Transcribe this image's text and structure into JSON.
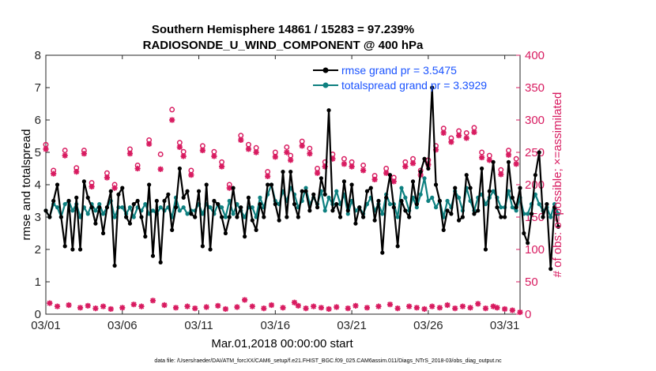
{
  "chart_data": {
    "type": "line",
    "title": "Southern Hemisphere 14861 / 15283 = 97.239%",
    "subtitle": "RADIOSONDE_U_WIND_COMPONENT @ 400 hPa",
    "xlabel": "Mar.01,2018 00:00:00 start",
    "ylabel": "rmse and totalspread",
    "ylabel_right": "# of obs: o=possible; ×=assimilated",
    "xlim": [
      0,
      124
    ],
    "ylim": [
      0,
      8
    ],
    "ylim_right": [
      0,
      400
    ],
    "x_ticks": [
      {
        "x": 0,
        "label": "03/01"
      },
      {
        "x": 20,
        "label": "03/06"
      },
      {
        "x": 40,
        "label": "03/11"
      },
      {
        "x": 60,
        "label": "03/16"
      },
      {
        "x": 80,
        "label": "03/21"
      },
      {
        "x": 100,
        "label": "03/26"
      },
      {
        "x": 120,
        "label": "03/31"
      }
    ],
    "y_ticks": [
      "0",
      "1",
      "2",
      "3",
      "4",
      "5",
      "6",
      "7",
      "8"
    ],
    "y_ticks_right": [
      "0",
      "50",
      "100",
      "150",
      "200",
      "250",
      "300",
      "350",
      "400"
    ],
    "colors": {
      "rmse": "#000000",
      "spread": "#0e8080",
      "obs": "#d81b60",
      "legend_text": "#1a53ff"
    },
    "series": [
      {
        "name": "rmse",
        "legend": "rmse grand pr = 3.5475",
        "values": [
          3.2,
          3.0,
          3.5,
          4.0,
          3.0,
          2.1,
          3.5,
          2.0,
          3.6,
          2.0,
          4.1,
          3.6,
          3.3,
          2.8,
          3.3,
          2.5,
          3.3,
          3.8,
          1.5,
          3.7,
          3.9,
          3.0,
          2.8,
          3.4,
          3.5,
          3.0,
          2.4,
          4.0,
          1.8,
          3.5,
          1.6,
          3.5,
          3.7,
          2.6,
          3.3,
          4.5,
          3.6,
          3.8,
          3.1,
          3.0,
          3.8,
          2.1,
          4.0,
          2.0,
          3.5,
          3.4,
          3.0,
          2.5,
          3.0,
          3.9,
          3.0,
          3.3,
          2.4,
          3.6,
          2.9,
          2.6,
          3.4,
          3.0,
          4.0,
          4.0,
          3.4,
          2.9,
          4.4,
          3.0,
          4.4,
          3.4,
          3.0,
          3.8,
          3.8,
          3.2,
          3.7,
          3.3,
          4.2,
          3.7,
          6.3,
          3.2,
          3.4,
          3.0,
          4.1,
          3.2,
          4.0,
          2.8,
          3.3,
          3.0,
          3.8,
          3.9,
          2.9,
          3.5,
          1.9,
          3.6,
          4.3,
          3.3,
          2.1,
          3.5,
          3.2,
          3.0,
          4.1,
          3.4,
          4.4,
          4.8,
          4.5,
          7.0,
          4.0,
          3.5,
          2.6,
          3.2,
          3.1,
          3.9,
          2.9,
          3.0,
          4.3,
          3.9,
          3.1,
          3.2,
          4.5,
          2.0,
          3.8,
          4.7,
          3.3,
          3.0,
          3.0,
          4.7,
          3.6,
          3.3,
          3.9,
          2.5,
          2.2,
          3.1,
          4.3,
          5.0,
          3.0,
          3.4,
          1.4,
          3.3,
          2.7
        ]
      },
      {
        "name": "totalspread",
        "legend": "totalspread grand pr = 3.3929",
        "values": [
          3.2,
          3.0,
          3.4,
          3.3,
          3.0,
          3.4,
          3.5,
          3.2,
          3.4,
          3.0,
          3.3,
          3.1,
          3.4,
          3.2,
          3.4,
          3.1,
          3.3,
          3.5,
          3.0,
          3.3,
          3.3,
          3.1,
          3.3,
          3.0,
          3.3,
          3.2,
          3.4,
          3.1,
          3.2,
          3.1,
          3.3,
          3.2,
          3.3,
          3.0,
          3.6,
          3.2,
          3.3,
          3.1,
          3.2,
          3.2,
          3.4,
          3.1,
          3.4,
          3.3,
          3.1,
          3.4,
          3.3,
          3.0,
          3.5,
          3.1,
          3.4,
          3.2,
          3.0,
          3.3,
          3.3,
          3.0,
          3.6,
          3.3,
          3.7,
          4.0,
          3.5,
          3.4,
          3.8,
          3.5,
          3.9,
          3.7,
          3.3,
          3.5,
          3.9,
          3.4,
          3.6,
          3.4,
          3.8,
          3.2,
          3.6,
          3.4,
          3.8,
          3.4,
          3.7,
          3.1,
          3.5,
          3.2,
          3.3,
          3.1,
          3.4,
          3.6,
          3.2,
          3.4,
          3.1,
          3.7,
          3.4,
          3.4,
          3.0,
          3.9,
          3.6,
          3.2,
          3.6,
          3.3,
          3.7,
          4.2,
          3.5,
          3.6,
          3.3,
          3.5,
          3.0,
          3.5,
          3.3,
          3.8,
          3.6,
          3.2,
          3.9,
          3.5,
          3.2,
          3.6,
          3.7,
          3.4,
          3.6,
          3.8,
          3.6,
          3.3,
          3.3,
          3.8,
          3.3,
          3.2,
          3.6,
          3.1,
          3.1,
          3.4,
          3.7,
          3.4,
          3.2,
          3.3,
          3.0,
          3.4,
          3.1
        ]
      }
    ],
    "obs_possible": [
      {
        "x": 0,
        "v": 262
      },
      {
        "x": 2,
        "v": 222
      },
      {
        "x": 5,
        "v": 253
      },
      {
        "x": 8,
        "v": 226
      },
      {
        "x": 10,
        "v": 253
      },
      {
        "x": 12,
        "v": 203
      },
      {
        "x": 16,
        "v": 218
      },
      {
        "x": 18,
        "v": 200
      },
      {
        "x": 22,
        "v": 255
      },
      {
        "x": 24,
        "v": 230
      },
      {
        "x": 27,
        "v": 269
      },
      {
        "x": 30,
        "v": 247
      },
      {
        "x": 33,
        "v": 316
      },
      {
        "x": 35,
        "v": 265
      },
      {
        "x": 36,
        "v": 251
      },
      {
        "x": 38,
        "v": 222
      },
      {
        "x": 41,
        "v": 260
      },
      {
        "x": 44,
        "v": 251
      },
      {
        "x": 46,
        "v": 235
      },
      {
        "x": 48,
        "v": 200
      },
      {
        "x": 51,
        "v": 276
      },
      {
        "x": 53,
        "v": 262
      },
      {
        "x": 55,
        "v": 257
      },
      {
        "x": 58,
        "v": 220
      },
      {
        "x": 60,
        "v": 250
      },
      {
        "x": 63,
        "v": 258
      },
      {
        "x": 64,
        "v": 245
      },
      {
        "x": 67,
        "v": 267
      },
      {
        "x": 69,
        "v": 256
      },
      {
        "x": 71,
        "v": 225
      },
      {
        "x": 73,
        "v": 235
      },
      {
        "x": 75,
        "v": 247
      },
      {
        "x": 78,
        "v": 240
      },
      {
        "x": 80,
        "v": 235
      },
      {
        "x": 83,
        "v": 230
      },
      {
        "x": 86,
        "v": 214
      },
      {
        "x": 89,
        "v": 225
      },
      {
        "x": 91,
        "v": 211
      },
      {
        "x": 94,
        "v": 235
      },
      {
        "x": 96,
        "v": 240
      },
      {
        "x": 98,
        "v": 222
      },
      {
        "x": 100,
        "v": 238
      },
      {
        "x": 102,
        "v": 260
      },
      {
        "x": 104,
        "v": 287
      },
      {
        "x": 106,
        "v": 272
      },
      {
        "x": 108,
        "v": 283
      },
      {
        "x": 110,
        "v": 280
      },
      {
        "x": 112,
        "v": 288
      },
      {
        "x": 114,
        "v": 250
      },
      {
        "x": 116,
        "v": 245
      },
      {
        "x": 119,
        "v": 223
      },
      {
        "x": 121,
        "v": 253
      },
      {
        "x": 123,
        "v": 240
      }
    ],
    "obs_assimilated": [
      {
        "x": 0,
        "v": 255
      },
      {
        "x": 2,
        "v": 217
      },
      {
        "x": 5,
        "v": 245
      },
      {
        "x": 8,
        "v": 220
      },
      {
        "x": 10,
        "v": 248
      },
      {
        "x": 12,
        "v": 197
      },
      {
        "x": 16,
        "v": 211
      },
      {
        "x": 18,
        "v": 195
      },
      {
        "x": 22,
        "v": 248
      },
      {
        "x": 24,
        "v": 225
      },
      {
        "x": 27,
        "v": 263
      },
      {
        "x": 30,
        "v": 224
      },
      {
        "x": 33,
        "v": 300
      },
      {
        "x": 35,
        "v": 258
      },
      {
        "x": 36,
        "v": 244
      },
      {
        "x": 38,
        "v": 215
      },
      {
        "x": 41,
        "v": 253
      },
      {
        "x": 44,
        "v": 244
      },
      {
        "x": 46,
        "v": 228
      },
      {
        "x": 48,
        "v": 195
      },
      {
        "x": 51,
        "v": 269
      },
      {
        "x": 53,
        "v": 255
      },
      {
        "x": 55,
        "v": 250
      },
      {
        "x": 58,
        "v": 213
      },
      {
        "x": 60,
        "v": 243
      },
      {
        "x": 63,
        "v": 250
      },
      {
        "x": 64,
        "v": 238
      },
      {
        "x": 67,
        "v": 260
      },
      {
        "x": 69,
        "v": 248
      },
      {
        "x": 71,
        "v": 218
      },
      {
        "x": 73,
        "v": 228
      },
      {
        "x": 75,
        "v": 240
      },
      {
        "x": 78,
        "v": 232
      },
      {
        "x": 80,
        "v": 228
      },
      {
        "x": 83,
        "v": 222
      },
      {
        "x": 86,
        "v": 208
      },
      {
        "x": 89,
        "v": 218
      },
      {
        "x": 91,
        "v": 205
      },
      {
        "x": 94,
        "v": 228
      },
      {
        "x": 96,
        "v": 233
      },
      {
        "x": 98,
        "v": 215
      },
      {
        "x": 100,
        "v": 231
      },
      {
        "x": 102,
        "v": 254
      },
      {
        "x": 104,
        "v": 280
      },
      {
        "x": 106,
        "v": 266
      },
      {
        "x": 108,
        "v": 276
      },
      {
        "x": 110,
        "v": 272
      },
      {
        "x": 112,
        "v": 281
      },
      {
        "x": 114,
        "v": 242
      },
      {
        "x": 116,
        "v": 238
      },
      {
        "x": 119,
        "v": 216
      },
      {
        "x": 121,
        "v": 246
      },
      {
        "x": 123,
        "v": 232
      }
    ],
    "obs_bottom": [
      {
        "x": 1,
        "v": 17
      },
      {
        "x": 3,
        "v": 12
      },
      {
        "x": 6,
        "v": 14
      },
      {
        "x": 9,
        "v": 10
      },
      {
        "x": 11,
        "v": 13
      },
      {
        "x": 13,
        "v": 9
      },
      {
        "x": 15,
        "v": 12
      },
      {
        "x": 17,
        "v": 8
      },
      {
        "x": 20,
        "v": 10
      },
      {
        "x": 23,
        "v": 15
      },
      {
        "x": 25,
        "v": 12
      },
      {
        "x": 28,
        "v": 21
      },
      {
        "x": 31,
        "v": 14
      },
      {
        "x": 34,
        "v": 10
      },
      {
        "x": 37,
        "v": 12
      },
      {
        "x": 39,
        "v": 9
      },
      {
        "x": 42,
        "v": 11
      },
      {
        "x": 45,
        "v": 13
      },
      {
        "x": 47,
        "v": 8
      },
      {
        "x": 50,
        "v": 11
      },
      {
        "x": 52,
        "v": 22
      },
      {
        "x": 54,
        "v": 12
      },
      {
        "x": 57,
        "v": 9
      },
      {
        "x": 59,
        "v": 14
      },
      {
        "x": 62,
        "v": 10
      },
      {
        "x": 65,
        "v": 18
      },
      {
        "x": 66,
        "v": 13
      },
      {
        "x": 68,
        "v": 9
      },
      {
        "x": 70,
        "v": 12
      },
      {
        "x": 72,
        "v": 10
      },
      {
        "x": 74,
        "v": 8
      },
      {
        "x": 76,
        "v": 11
      },
      {
        "x": 79,
        "v": 9
      },
      {
        "x": 81,
        "v": 13
      },
      {
        "x": 84,
        "v": 10
      },
      {
        "x": 87,
        "v": 12
      },
      {
        "x": 90,
        "v": 15
      },
      {
        "x": 92,
        "v": 9
      },
      {
        "x": 95,
        "v": 12
      },
      {
        "x": 97,
        "v": 10
      },
      {
        "x": 99,
        "v": 8
      },
      {
        "x": 101,
        "v": 12
      },
      {
        "x": 103,
        "v": 10
      },
      {
        "x": 105,
        "v": 14
      },
      {
        "x": 107,
        "v": 9
      },
      {
        "x": 109,
        "v": 12
      },
      {
        "x": 111,
        "v": 10
      },
      {
        "x": 113,
        "v": 16
      },
      {
        "x": 115,
        "v": 9
      },
      {
        "x": 117,
        "v": 12
      },
      {
        "x": 118,
        "v": 10
      },
      {
        "x": 120,
        "v": 8
      },
      {
        "x": 122,
        "v": 6
      },
      {
        "x": 124,
        "v": 3
      }
    ],
    "footnote": "data file: /Users/raeder/DAI/ATM_forcXX/CAM6_setup/f.e21.FHIST_BGC.f09_025.CAM6assim.011/Diags_NTrS_2018-03/obs_diag_output.nc"
  }
}
